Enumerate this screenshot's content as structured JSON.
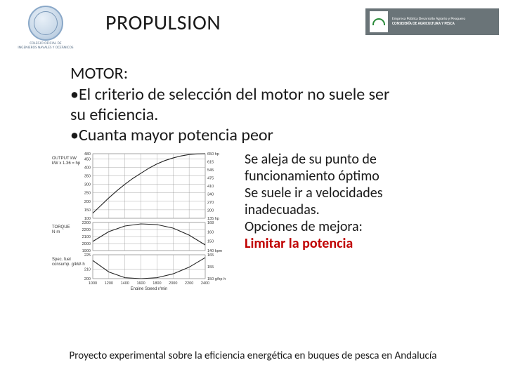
{
  "header": {
    "title": "PROPULSION",
    "logo_left_line1": "COLEGIO OFICIAL DE",
    "logo_left_line2": "INGENIEROS NAVALES Y OCEÁNICOS",
    "logo_right_line1": "Empresa Pública Desarrollo Agrario y Pesquero",
    "logo_right_line2": "CONSEJERÍA DE AGRICULTURA Y PESCA"
  },
  "body": {
    "section_title": "MOTOR:",
    "bullet1a": "•El criterio de selección del motor no suele ser",
    "bullet1b": "su eficiencia.",
    "bullet2": "•Cuanta mayor potencia peor",
    "side1": "Se aleja de su punto de",
    "side2": "funcionamiento óptimo",
    "side3": "Se suele ir a velocidades",
    "side4": "inadecuadas.",
    "side5": "Opciones de mejora:",
    "side6": "Limitar la potencia"
  },
  "footer": {
    "text": "Proyecto experimental sobre la eficiencia energética en buques de pesca en Andalucía"
  },
  "chart": {
    "type": "engine-curves",
    "background_color": "#ffffff",
    "grid_color": "#888888",
    "line_color": "#222222",
    "line_width": 1.1,
    "grid_width": 0.35,
    "x": {
      "min": 1000,
      "max": 2400,
      "ticks": [
        1000,
        1200,
        1400,
        1600,
        1800,
        2000,
        2200,
        2400
      ],
      "label": "Engine Speed r/min"
    },
    "panels": [
      {
        "name": "output",
        "label_left": "OUTPUT kW",
        "sublabel_left": "kW x 1.36 = hp",
        "y_left": {
          "min": 100,
          "max": 480,
          "ticks": [
            100,
            150,
            200,
            250,
            300,
            350,
            400,
            450,
            480
          ]
        },
        "y_right_labels": [
          "135 hp",
          "200",
          "270",
          "340",
          "410",
          "475",
          "545",
          "615",
          "650 hp"
        ],
        "data": [
          [
            1000,
            130
          ],
          [
            1100,
            175
          ],
          [
            1200,
            220
          ],
          [
            1300,
            262
          ],
          [
            1400,
            300
          ],
          [
            1500,
            335
          ],
          [
            1600,
            365
          ],
          [
            1700,
            395
          ],
          [
            1800,
            420
          ],
          [
            1900,
            440
          ],
          [
            2000,
            455
          ],
          [
            2100,
            467
          ],
          [
            2200,
            475
          ],
          [
            2300,
            479
          ],
          [
            2400,
            480
          ]
        ]
      },
      {
        "name": "torque",
        "label_left": "TORQUE",
        "sublabel_left": "N·m",
        "y_left": {
          "min": 1900,
          "max": 2300,
          "ticks": [
            1900,
            2000,
            2100,
            2200,
            2300
          ]
        },
        "y_right_labels": [
          "140 kpm",
          "150",
          "160",
          "168"
        ],
        "data": [
          [
            1000,
            2030
          ],
          [
            1200,
            2170
          ],
          [
            1400,
            2250
          ],
          [
            1600,
            2280
          ],
          [
            1800,
            2270
          ],
          [
            2000,
            2220
          ],
          [
            2200,
            2120
          ],
          [
            2400,
            1980
          ]
        ]
      },
      {
        "name": "sfc",
        "label_left": "Spec. fuel",
        "sublabel_left": "consump. g/kW·h",
        "y_left": {
          "min": 200,
          "max": 225,
          "ticks": [
            200,
            210,
            225
          ]
        },
        "y_right_labels": [
          "150 g/hp·h",
          "155",
          "165"
        ],
        "data": [
          [
            1000,
            219
          ],
          [
            1200,
            207
          ],
          [
            1400,
            201
          ],
          [
            1600,
            200
          ],
          [
            1800,
            201
          ],
          [
            2000,
            205
          ],
          [
            2200,
            212
          ],
          [
            2400,
            222
          ]
        ]
      }
    ]
  }
}
